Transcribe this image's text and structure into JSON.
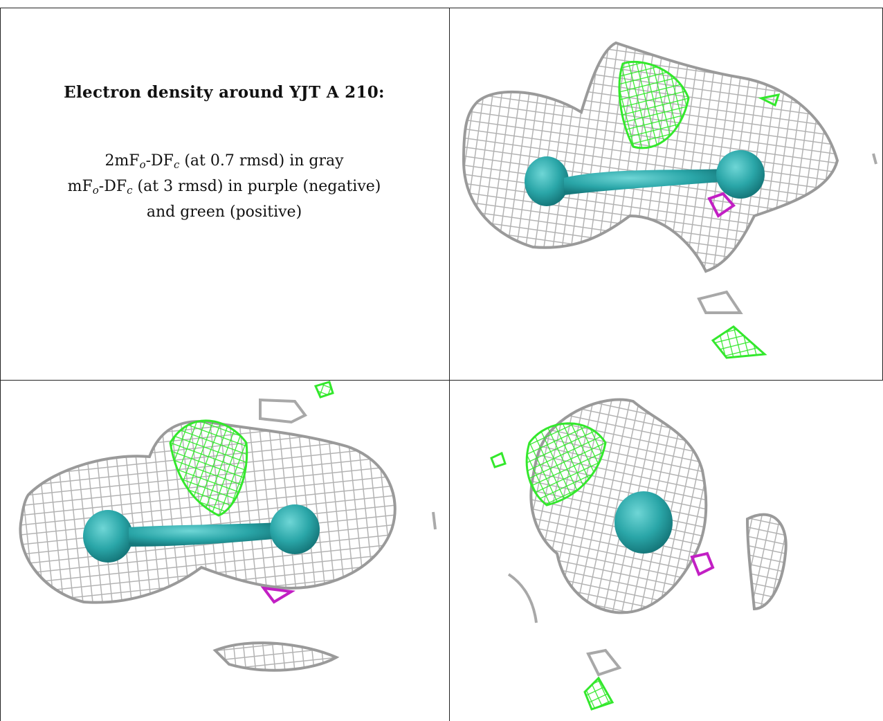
{
  "caption": {
    "title": "Electron density around YJT A 210:",
    "line1": {
      "prefix": "2mF",
      "sub1": "o",
      "mid": "-DF",
      "sub2": "c",
      "suffix": " (at 0.7 rmsd) in gray"
    },
    "line2": {
      "prefix": "mF",
      "sub1": "o",
      "mid": "-DF",
      "sub2": "c",
      "suffix": " (at 3 rmsd) in purple (negative)"
    },
    "line3": "and green (positive)"
  },
  "colors": {
    "mesh_gray": "#b8b8b8",
    "mesh_gray_dark": "#8c8c8c",
    "ligand_teal": "#2aa6a8",
    "ligand_teal_dark": "#16797c",
    "positive_green": "#33e82c",
    "negative_purple": "#c21fc4",
    "border": "#222222"
  },
  "panels": [
    {
      "id": "view-top-right",
      "icon": "density-mesh-view-1"
    },
    {
      "id": "view-bottom-left",
      "icon": "density-mesh-view-2"
    },
    {
      "id": "view-bottom-right",
      "icon": "density-mesh-view-3"
    }
  ]
}
